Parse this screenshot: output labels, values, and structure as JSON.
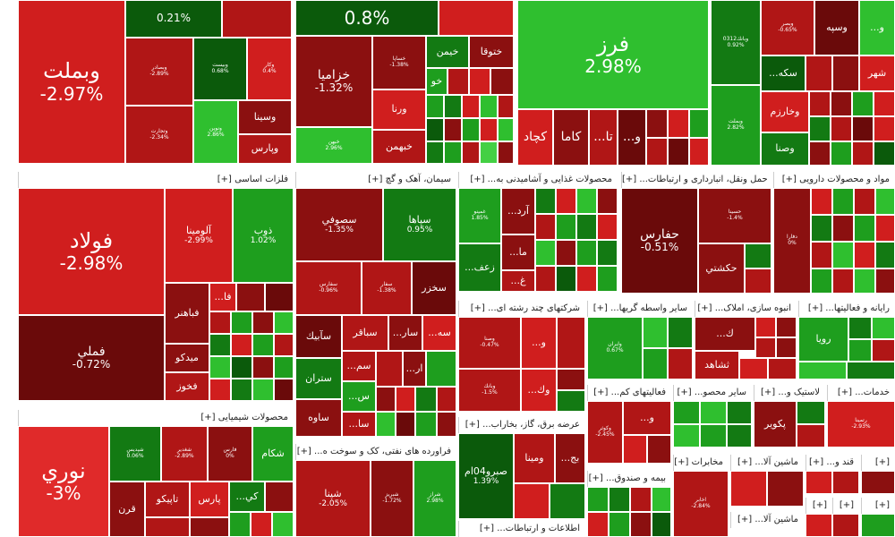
{
  "sectors": {
    "basic_metals": "[+] فلزات اساسی",
    "cement": "[+] سیمان، آهک و گچ",
    "food": "[+] ...محصولات غذایی و آشامیدنی به",
    "transport": "[+] ...حمل ونقل، انبارداری و ارتباطات",
    "pharma": "[+] مواد و محصولات دارویی",
    "multi": "[+] ...شرکتهای چند رشته ای",
    "brokers": "[+] ...سایر واسطه گریها",
    "realestate": "[+] ...انبوه سازی، املاک",
    "computer": "[+] ...رایانه و فعالیتها",
    "chemical": "[+] محصولات شیمیایی",
    "utility": "[+] ...عرضه برق، گاز، بخاراب",
    "auxfin": "[+] ...فعالیتهای کم",
    "other_prod": "[+] ...سایر محصو",
    "plastic": "[+] ...لاستیک و",
    "services": "[+] ...خدمات",
    "petroleum": "[+] ...فراورده های نفتی، کک و سوخت ه",
    "insurance": "[+] ...بیمه و صندوق",
    "telecom": "[+] مخابرات",
    "machinery": "[+] ...ماشین آلا",
    "machinery2": "[+] ...ماشین آلا",
    "sugar": "[+] ...قند و",
    "it": "[+] ...اطلاعات و ارتباطات"
  },
  "tiles": {
    "vbmellat": {
      "name": "وبملت",
      "pct": "-2.97%"
    },
    "t_top1": {
      "name": "",
      "pct": "0.21%"
    },
    "t_top2": {
      "name": "",
      "pct": "0.8%"
    },
    "farz": {
      "name": "فرز",
      "pct": "2.98%"
    },
    "foolad": {
      "name": "فولاد",
      "pct": "-2.98%"
    },
    "femli": {
      "name": "فملي",
      "pct": "-0.72%"
    },
    "aloomina": {
      "name": "آلومينا",
      "pct": "-2.99%"
    },
    "zob": {
      "name": "ذوب",
      "pct": "1.02%"
    },
    "noori": {
      "name": "نوري",
      "pct": "-3%"
    },
    "khazamia": {
      "name": "خزاميا",
      "pct": "-1.32%"
    },
    "sesofi": {
      "name": "سصوفي",
      "pct": "-1.35%"
    },
    "sepaha": {
      "name": "سپاها",
      "pct": "0.95%"
    },
    "hafaris": {
      "name": "حفارس",
      "pct": "-0.51%"
    },
    "shina": {
      "name": "شپنا",
      "pct": "-2.05%"
    },
    "sarave04": {
      "name": "صبرو04ام",
      "pct": "1.39%"
    },
    "vbim": {
      "name": "وبيم",
      "pct": "2.82%"
    },
    "vesina": {
      "name": "وسينا",
      "pct": ""
    },
    "vpars": {
      "name": "وپارس",
      "pct": ""
    },
    "varna": {
      "name": "ورنا",
      "pct": ""
    },
    "khbahman": {
      "name": "خبهمن",
      "pct": ""
    },
    "khimen": {
      "name": "خيمن",
      "pct": ""
    },
    "khotoga": {
      "name": "ختوقا",
      "pct": ""
    },
    "khodro": {
      "name": "خو",
      "pct": ""
    },
    "kchad": {
      "name": "كچاد",
      "pct": ""
    },
    "kama": {
      "name": "كاما",
      "pct": ""
    },
    "ta": {
      "name": "...تا",
      "pct": ""
    },
    "vo1": {
      "name": "...و",
      "pct": ""
    },
    "vesoye": {
      "name": "وسپه",
      "pct": ""
    },
    "vo2": {
      "name": "...و",
      "pct": ""
    },
    "sekke": {
      "name": "...سكه",
      "pct": ""
    },
    "shahr": {
      "name": "شهر",
      "pct": ""
    },
    "vkharazm": {
      "name": "وخارزم",
      "pct": ""
    },
    "vsana": {
      "name": "وصنا",
      "pct": ""
    },
    "fabahnor": {
      "name": "فباهنر",
      "pct": ""
    },
    "mido": {
      "name": "ميدكو",
      "pct": ""
    },
    "fkhoz": {
      "name": "فخوز",
      "pct": ""
    },
    "fa": {
      "name": "...فا",
      "pct": ""
    },
    "sabik": {
      "name": "سآبيك",
      "pct": ""
    },
    "sbaghar": {
      "name": "سباقر",
      "pct": ""
    },
    "sar": {
      "name": "...سار",
      "pct": ""
    },
    "se": {
      "name": "...سه",
      "pct": ""
    },
    "skhazar": {
      "name": "سخزر",
      "pct": ""
    },
    "sem": {
      "name": "...سم",
      "pct": ""
    },
    "sartan": {
      "name": "ستران",
      "pct": ""
    },
    "sar2": {
      "name": "...ار",
      "pct": ""
    },
    "ses": {
      "name": "...س",
      "pct": ""
    },
    "saveh": {
      "name": "ساوه",
      "pct": ""
    },
    "sa": {
      "name": "...سا",
      "pct": ""
    },
    "ard": {
      "name": "...آرد",
      "pct": ""
    },
    "ma": {
      "name": "...ما",
      "pct": ""
    },
    "zaf": {
      "name": "...زعف",
      "pct": ""
    },
    "gh": {
      "name": "...غ",
      "pct": ""
    },
    "hakshti": {
      "name": "حكشتي",
      "pct": ""
    },
    "ropya": {
      "name": "رويا",
      "pct": ""
    },
    "tashad": {
      "name": "ثشاهد",
      "pct": ""
    },
    "vo3": {
      "name": "...و",
      "pct": ""
    },
    "vok": {
      "name": "...وك",
      "pct": ""
    },
    "vairan": {
      "name": "وايران",
      "pct": "0.67%"
    },
    "kpars": {
      "name": "پارس",
      "pct": ""
    },
    "shikam": {
      "name": "شكام",
      "pct": ""
    },
    "tapiko": {
      "name": "تاپيكو",
      "pct": ""
    },
    "qarn": {
      "name": "قرن",
      "pct": ""
    },
    "ki": {
      "name": "...كي",
      "pct": ""
    },
    "vmina": {
      "name": "ومينا",
      "pct": ""
    },
    "bj": {
      "name": "...بج",
      "pct": ""
    },
    "pakvir": {
      "name": "پكوير",
      "pct": ""
    },
    "akhabar": {
      "name": "اخابر",
      "pct": "-2.84%"
    },
    "rtmina": {
      "name": "رتمينا",
      "pct": "-2.93%"
    },
    "k": {
      "name": "...ك",
      "pct": ""
    },
    "vo4": {
      "name": "...و",
      "pct": ""
    },
    "moalem": {
      "name": "...و",
      "pct": ""
    }
  }
}
